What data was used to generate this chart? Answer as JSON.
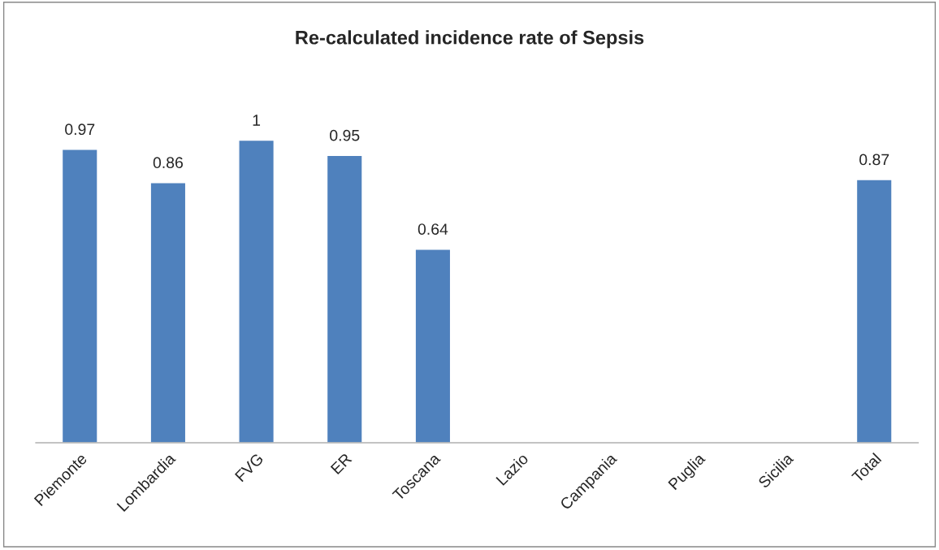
{
  "chart_data": {
    "type": "bar",
    "title": "Re-calculated incidence rate of Sepsis",
    "categories": [
      "Piemonte",
      "Lombardia",
      "FVG",
      "ER",
      "Toscana",
      "Lazio",
      "Campania",
      "Puglia",
      "Sicilia",
      "Total"
    ],
    "values": [
      0.97,
      0.86,
      1,
      0.95,
      0.64,
      null,
      null,
      null,
      null,
      0.87
    ],
    "color": "#4f81bd",
    "data_labels": true
  }
}
